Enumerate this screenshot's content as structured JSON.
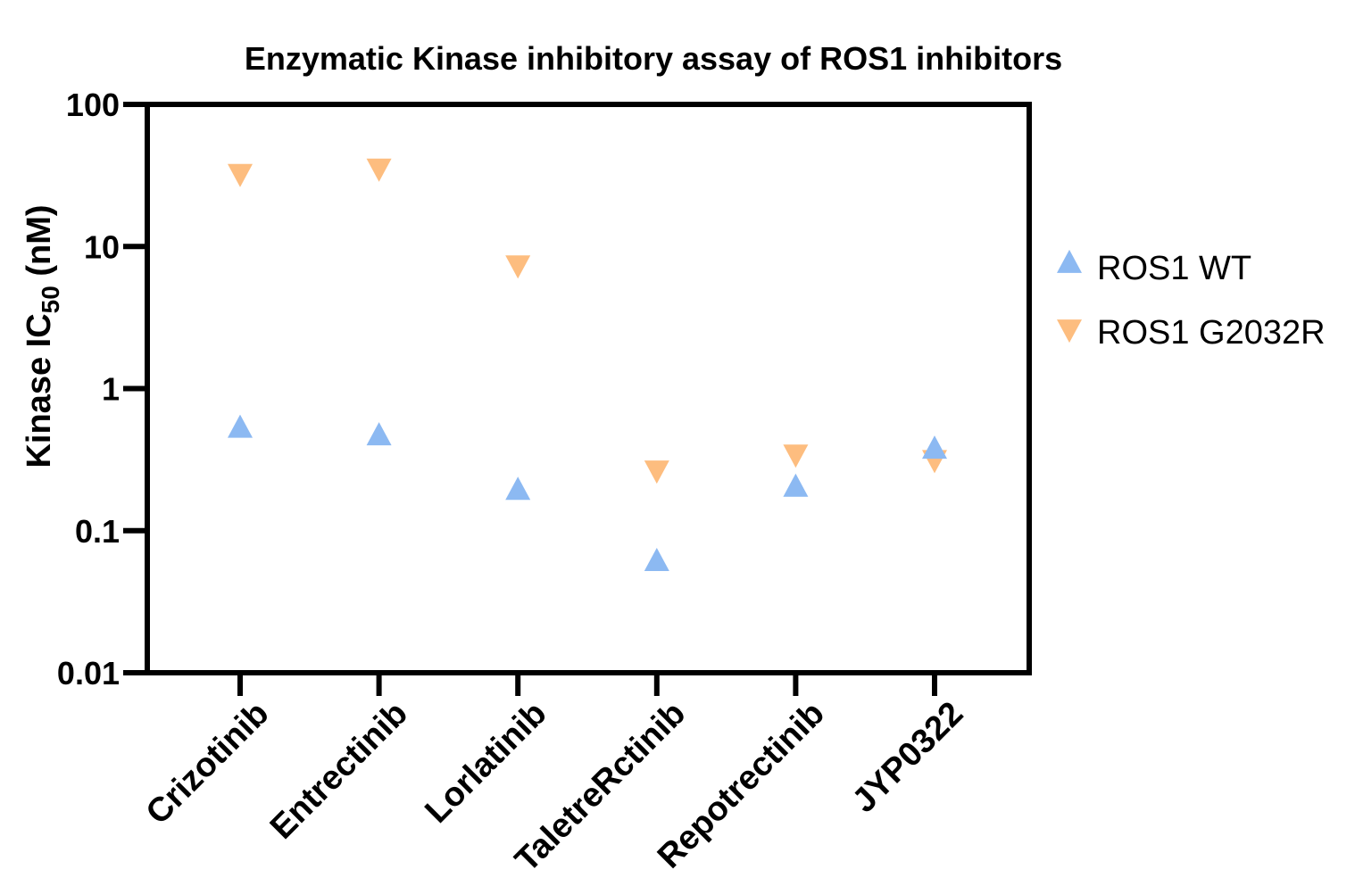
{
  "chart_data": {
    "type": "scatter",
    "title": "Enzymatic Kinase inhibitory assay of ROS1 inhibitors",
    "ylabel": {
      "main": "Kinase IC",
      "subscript": "50",
      "suffix": " (nM)"
    },
    "xlabel": "",
    "yscale": "log",
    "ylim": [
      0.01,
      100
    ],
    "yticks": [
      {
        "value": 100,
        "label": "100"
      },
      {
        "value": 10,
        "label": "10"
      },
      {
        "value": 1,
        "label": "1"
      },
      {
        "value": 0.1,
        "label": "0.1"
      },
      {
        "value": 0.01,
        "label": "0.01"
      }
    ],
    "categories": [
      "Crizotinib",
      "Entrectinib",
      "Lorlatinib",
      "TaletreRctinib",
      "Repotrectinib",
      "JYP0322"
    ],
    "series": [
      {
        "name": "ROS1 WT",
        "marker": "triangle-up",
        "color": "#8cb9f2",
        "values": [
          0.52,
          0.46,
          0.19,
          0.06,
          0.2,
          0.37
        ]
      },
      {
        "name": "ROS1 G2032R",
        "marker": "triangle-down",
        "color": "#fdbd7f",
        "values": [
          33,
          36,
          7.5,
          0.27,
          0.35,
          0.32
        ]
      }
    ],
    "legend": "right",
    "grid": false
  }
}
